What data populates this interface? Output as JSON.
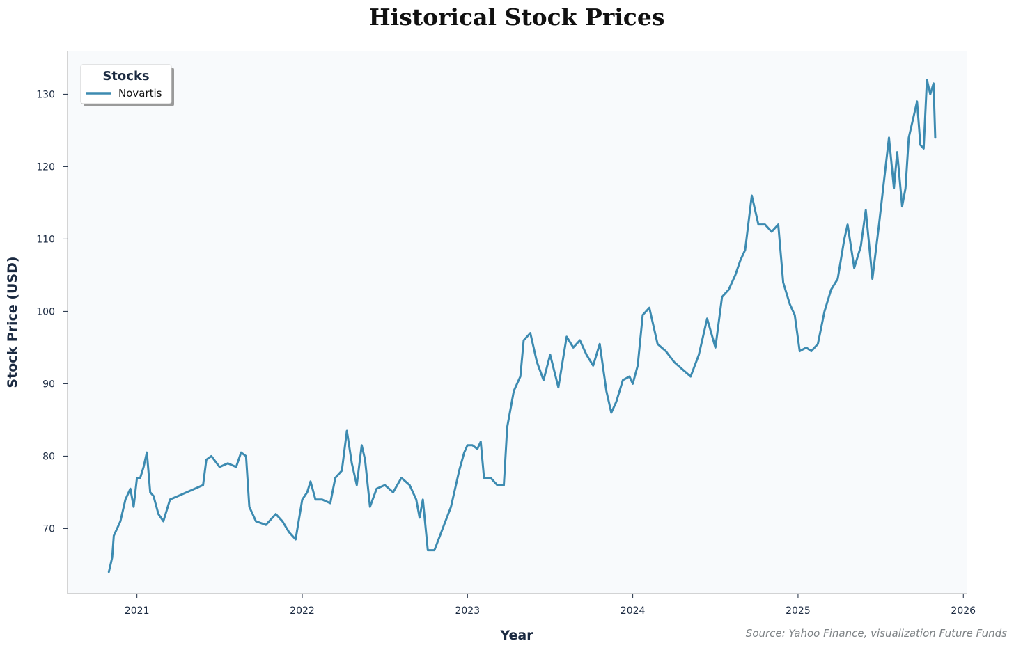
{
  "chart_data": {
    "type": "line",
    "title": "Historical Stock Prices",
    "xlabel": "Year",
    "ylabel": "Stock Price (USD)",
    "source_note": "Source: Yahoo Finance, visualization Future Funds",
    "xlim": [
      2020.58,
      2026.02
    ],
    "ylim": [
      61,
      136
    ],
    "x_ticks": [
      2021,
      2022,
      2023,
      2024,
      2025,
      2026
    ],
    "x_tick_labels": [
      "2021",
      "2022",
      "2023",
      "2024",
      "2025",
      "2026"
    ],
    "y_ticks": [
      70,
      80,
      90,
      100,
      110,
      120,
      130
    ],
    "y_tick_labels": [
      "70",
      "80",
      "90",
      "100",
      "110",
      "120",
      "130"
    ],
    "grid": false,
    "legend": {
      "title": "Stocks",
      "position": "top-left"
    },
    "colors": {
      "series": "#3d8bb1",
      "plot_bg": "#f8fafc",
      "axis": "#c6c6c6",
      "text": "#1b2a41"
    },
    "series": [
      {
        "name": "Novartis",
        "x": [
          2020.83,
          2020.85,
          2020.86,
          2020.88,
          2020.9,
          2020.93,
          2020.96,
          2020.98,
          2021.0,
          2021.02,
          2021.04,
          2021.06,
          2021.08,
          2021.1,
          2021.13,
          2021.16,
          2021.2,
          2021.25,
          2021.3,
          2021.35,
          2021.4,
          2021.42,
          2021.45,
          2021.5,
          2021.55,
          2021.6,
          2021.63,
          2021.66,
          2021.68,
          2021.72,
          2021.78,
          2021.84,
          2021.88,
          2021.92,
          2021.96,
          2022.0,
          2022.03,
          2022.05,
          2022.08,
          2022.12,
          2022.17,
          2022.2,
          2022.24,
          2022.27,
          2022.3,
          2022.33,
          2022.36,
          2022.38,
          2022.41,
          2022.45,
          2022.5,
          2022.55,
          2022.6,
          2022.65,
          2022.69,
          2022.71,
          2022.73,
          2022.76,
          2022.8,
          2022.85,
          2022.9,
          2022.95,
          2022.98,
          2023.0,
          2023.03,
          2023.06,
          2023.08,
          2023.1,
          2023.14,
          2023.18,
          2023.22,
          2023.24,
          2023.28,
          2023.32,
          2023.34,
          2023.38,
          2023.42,
          2023.46,
          2023.5,
          2023.55,
          2023.6,
          2023.64,
          2023.68,
          2023.72,
          2023.76,
          2023.8,
          2023.84,
          2023.87,
          2023.9,
          2023.94,
          2023.98,
          2024.0,
          2024.03,
          2024.06,
          2024.1,
          2024.15,
          2024.2,
          2024.25,
          2024.3,
          2024.35,
          2024.4,
          2024.45,
          2024.5,
          2024.54,
          2024.58,
          2024.62,
          2024.65,
          2024.68,
          2024.72,
          2024.76,
          2024.8,
          2024.84,
          2024.88,
          2024.91,
          2024.95,
          2024.98,
          2025.01,
          2025.05,
          2025.08,
          2025.12,
          2025.16,
          2025.2,
          2025.24,
          2025.28,
          2025.3,
          2025.34,
          2025.38,
          2025.41,
          2025.45,
          2025.49,
          2025.52,
          2025.55,
          2025.58,
          2025.6,
          2025.63,
          2025.65,
          2025.67,
          2025.7,
          2025.72,
          2025.74,
          2025.76,
          2025.78,
          2025.8,
          2025.82,
          2025.83
        ],
        "values": [
          64,
          66,
          69,
          70,
          71,
          74,
          75.5,
          73,
          77,
          77,
          78.5,
          80.5,
          75,
          74.5,
          72,
          71,
          74,
          74.5,
          75,
          75.5,
          76,
          79.5,
          80,
          78.5,
          79,
          78.5,
          80.5,
          80,
          73,
          71,
          70.5,
          72,
          71,
          69.5,
          68.5,
          74,
          75,
          76.5,
          74,
          74,
          73.5,
          77,
          78,
          83.5,
          79,
          76,
          81.5,
          79.5,
          73,
          75.5,
          76,
          75,
          77,
          76,
          74,
          71.5,
          74,
          67,
          67,
          70,
          73,
          78,
          80.5,
          81.5,
          81.5,
          81,
          82,
          77,
          77,
          76,
          76,
          84,
          89,
          91,
          96,
          97,
          93,
          90.5,
          94,
          89.5,
          96.5,
          95,
          96,
          94,
          92.5,
          95.5,
          89,
          86,
          87.5,
          90.5,
          91,
          90,
          92.5,
          99.5,
          100.5,
          95.5,
          94.5,
          93,
          92,
          91,
          94,
          99,
          95,
          102,
          103,
          105,
          107,
          108.5,
          116,
          112,
          112,
          111,
          112,
          104,
          101,
          99.5,
          94.5,
          95,
          94.5,
          95.5,
          100,
          103,
          104.5,
          110,
          112,
          106,
          109,
          114,
          104.5,
          112,
          118,
          124,
          117,
          122,
          114.5,
          117,
          124,
          127,
          129,
          123,
          122.5,
          132,
          130,
          131.5,
          124
        ]
      }
    ]
  }
}
